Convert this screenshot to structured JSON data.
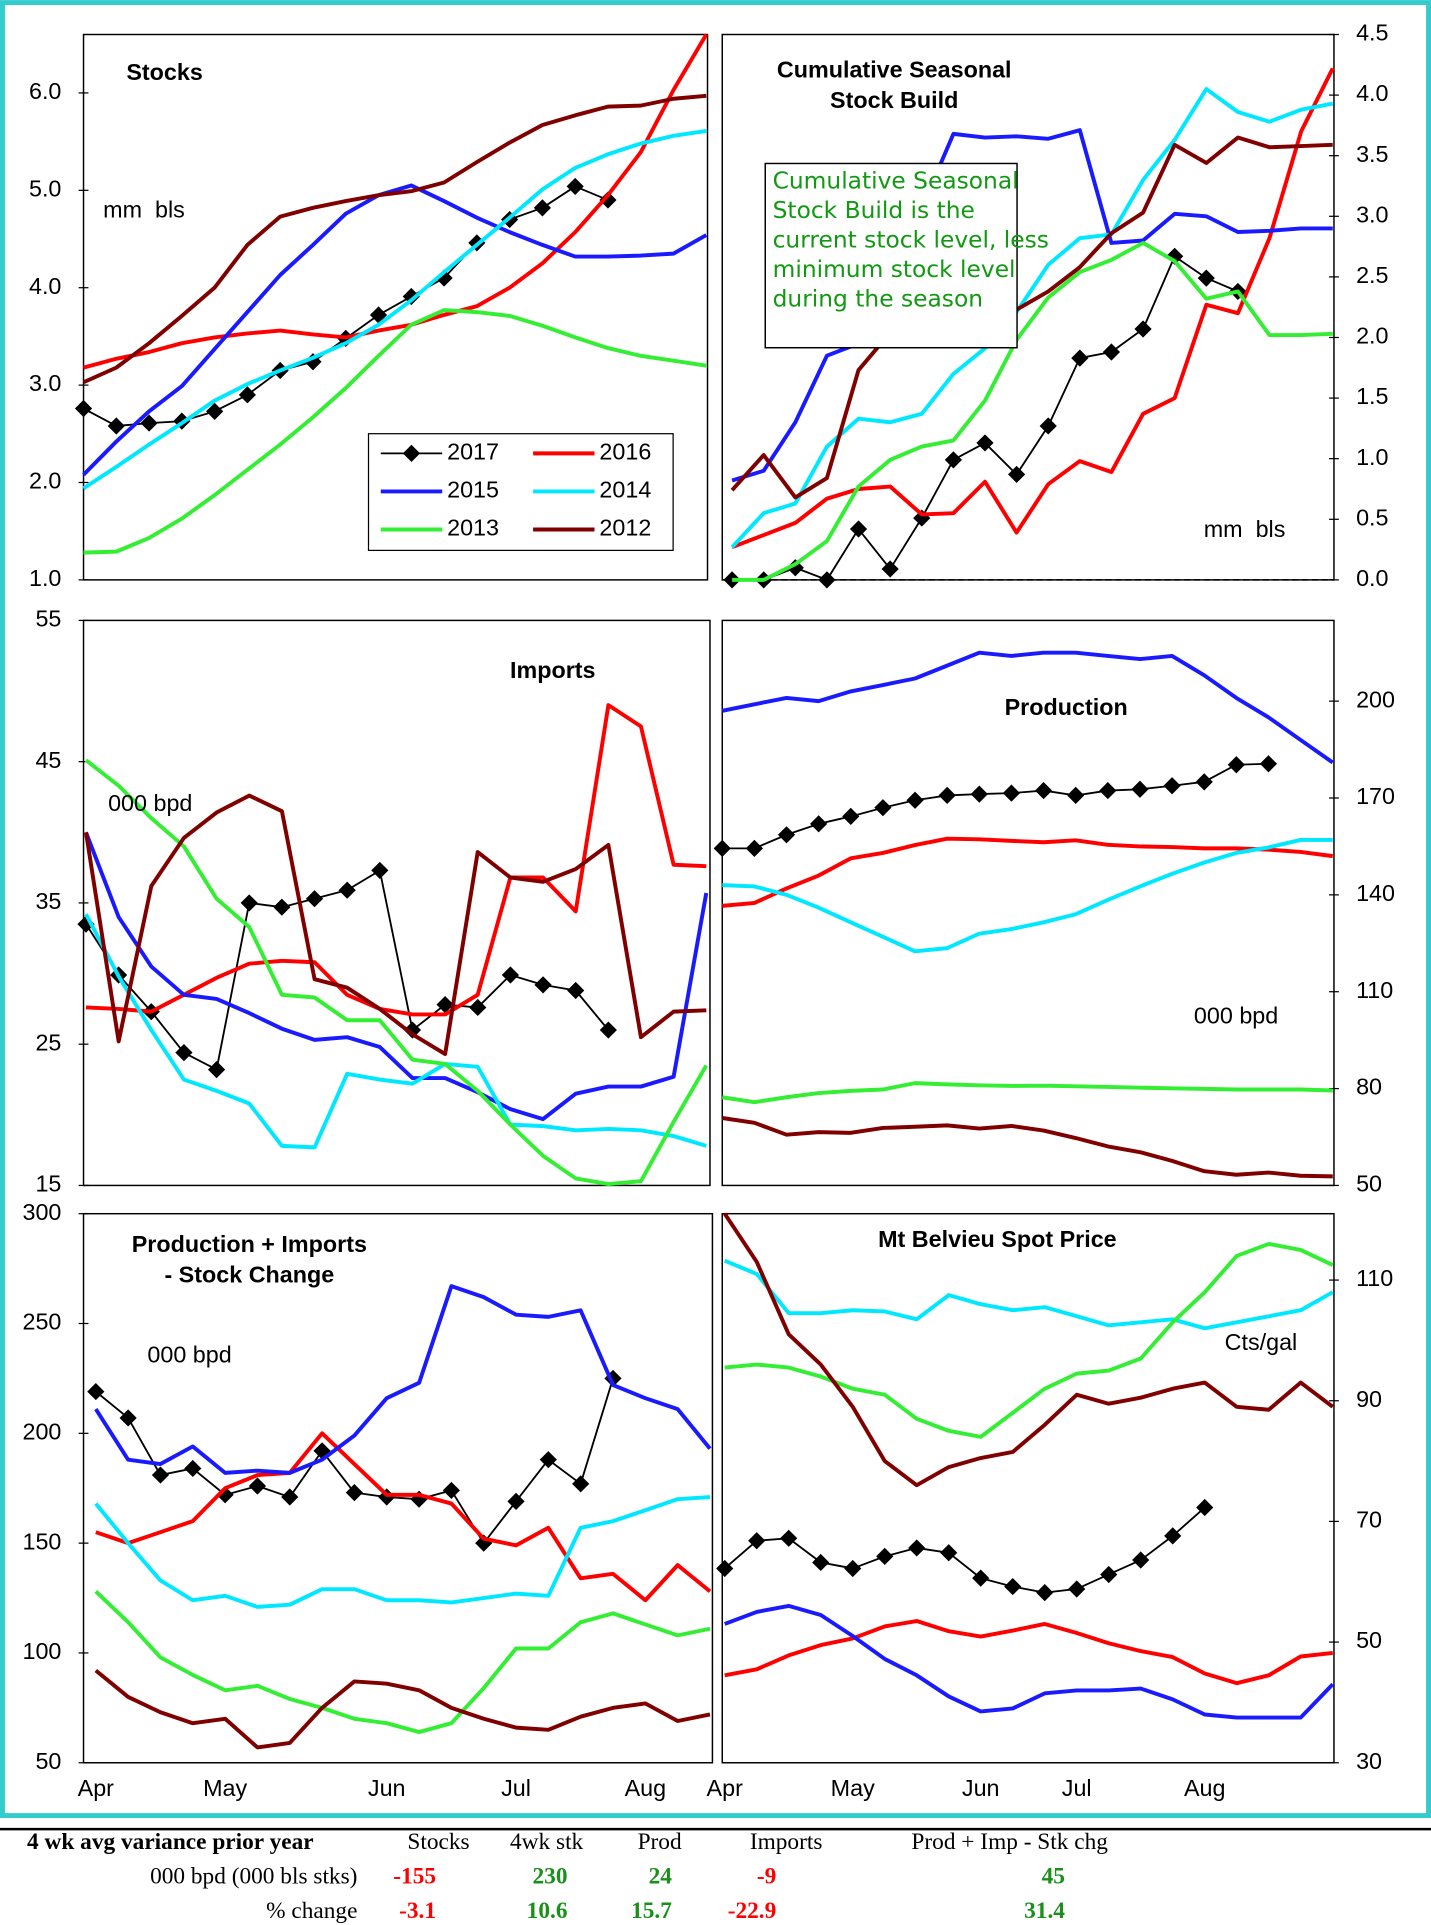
{
  "chart_data": [
    {
      "type": "line",
      "title": "Stocks",
      "annotations": [
        "mm  bls"
      ],
      "ylim": [
        1,
        6.6
      ],
      "yticks": [
        {
          "value": 1,
          "label": "1.0"
        },
        {
          "value": 2,
          "label": "2.0"
        },
        {
          "value": 3,
          "label": "3.0"
        },
        {
          "value": 4,
          "label": "4.0"
        },
        {
          "value": 5,
          "label": "5.0"
        },
        {
          "value": 6,
          "label": "6.0"
        }
      ],
      "legend": "lower right",
      "series": [
        {
          "name": "2017",
          "color": "#000000",
          "marker": "diamond",
          "values": [
            2.76,
            2.58,
            2.61,
            2.63,
            2.73,
            2.9,
            3.15,
            3.24,
            3.48,
            3.72,
            3.91,
            4.1,
            4.46,
            4.7,
            4.82,
            5.04,
            4.9,
            null,
            null,
            null
          ]
        },
        {
          "name": "2016",
          "color": "#ff0000",
          "values": [
            3.18,
            3.27,
            3.34,
            3.43,
            3.49,
            3.53,
            3.56,
            3.52,
            3.49,
            3.56,
            3.62,
            3.72,
            3.81,
            4.0,
            4.25,
            4.57,
            4.95,
            5.39,
            6.03,
            6.6
          ]
        },
        {
          "name": "2015",
          "color": "#1a1aff",
          "values": [
            2.08,
            2.42,
            2.73,
            2.99,
            3.37,
            3.75,
            4.13,
            4.44,
            4.76,
            4.95,
            5.05,
            4.89,
            4.72,
            4.57,
            4.44,
            4.32,
            4.32,
            4.33,
            4.35,
            4.54
          ]
        },
        {
          "name": "2014",
          "color": "#00e8ff",
          "values": [
            1.94,
            2.16,
            2.39,
            2.61,
            2.84,
            3.01,
            3.15,
            3.28,
            3.43,
            3.62,
            3.87,
            4.16,
            4.44,
            4.72,
            5.01,
            5.23,
            5.37,
            5.48,
            5.56,
            5.61
          ]
        },
        {
          "name": "2013",
          "color": "#33ee33",
          "values": [
            1.28,
            1.29,
            1.43,
            1.63,
            1.87,
            2.13,
            2.39,
            2.67,
            2.97,
            3.3,
            3.62,
            3.77,
            3.75,
            3.71,
            3.61,
            3.49,
            3.38,
            3.3,
            3.25,
            3.2
          ]
        },
        {
          "name": "2012",
          "color": "#800000",
          "values": [
            3.03,
            3.18,
            3.43,
            3.71,
            4.0,
            4.44,
            4.73,
            4.82,
            4.89,
            4.95,
            4.99,
            5.08,
            5.29,
            5.49,
            5.67,
            5.77,
            5.86,
            5.87,
            5.94,
            5.97
          ]
        }
      ]
    },
    {
      "type": "line",
      "title": [
        "Cumulative Seasonal",
        "Stock Build"
      ],
      "annotations": [
        "mm  bls"
      ],
      "zero_line": true,
      "textbox": [
        "Cumulative Seasonal",
        "Stock Build is the",
        "current stock level, less",
        "minimum stock level",
        "during the season"
      ],
      "ylim": [
        0,
        4.5
      ],
      "yticks": [
        {
          "value": 0,
          "label": "0.0"
        },
        0.5,
        {
          "value": 1,
          "label": "1.0"
        },
        1.5,
        {
          "value": 2,
          "label": "2.0"
        },
        2.5,
        {
          "value": 3,
          "label": "3.0"
        },
        3.5,
        {
          "value": 4,
          "label": "4.0"
        },
        4.5
      ],
      "series": [
        {
          "color": "#000000",
          "marker": "diamond",
          "values": [
            0,
            0,
            0.1,
            0,
            0.42,
            0.09,
            0.51,
            0.99,
            1.13,
            0.87,
            1.27,
            1.83,
            1.88,
            2.07,
            2.67,
            2.49,
            2.38,
            null,
            null,
            null
          ]
        },
        {
          "color": "#ff0000",
          "values": [
            0.27,
            0.37,
            0.47,
            0.67,
            0.75,
            0.77,
            0.54,
            0.55,
            0.81,
            0.39,
            0.79,
            0.98,
            0.89,
            1.37,
            1.5,
            2.27,
            2.2,
            2.82,
            3.7,
            4.22
          ]
        },
        {
          "color": "#1a1aff",
          "values": [
            0.82,
            0.9,
            1.3,
            1.85,
            1.95,
            2.5,
            3.07,
            3.68,
            3.65,
            3.66,
            3.64,
            3.71,
            2.78,
            2.8,
            3.02,
            3.0,
            2.87,
            2.88,
            2.9,
            2.9
          ]
        },
        {
          "color": "#00e8ff",
          "values": [
            0.27,
            0.55,
            0.63,
            1.1,
            1.33,
            1.3,
            1.37,
            1.7,
            1.91,
            2.21,
            2.6,
            2.82,
            2.85,
            3.3,
            3.63,
            4.05,
            3.86,
            3.78,
            3.88,
            3.93
          ]
        },
        {
          "color": "#33ee33",
          "values": [
            0,
            0,
            0.13,
            0.32,
            0.77,
            0.99,
            1.1,
            1.15,
            1.48,
            1.98,
            2.33,
            2.54,
            2.64,
            2.78,
            2.63,
            2.32,
            2.38,
            2.02,
            2.02,
            2.03
          ]
        },
        {
          "color": "#800000",
          "values": [
            0.74,
            1.03,
            0.68,
            0.84,
            1.73,
            2.04,
            2.36,
            2.25,
            2.0,
            2.23,
            2.38,
            2.58,
            2.86,
            3.03,
            3.59,
            3.44,
            3.65,
            3.57,
            3.58,
            3.59
          ]
        }
      ]
    },
    {
      "type": "line",
      "title": "Imports",
      "annotations": [
        "000 bpd"
      ],
      "ylim": [
        15,
        55
      ],
      "yticks": [
        15,
        25,
        35,
        45,
        55
      ],
      "series": [
        {
          "color": "#000000",
          "marker": "diamond",
          "values": [
            33.5,
            29.9,
            27.3,
            24.4,
            23.2,
            35,
            34.7,
            35.3,
            35.9,
            37.3,
            26,
            27.8,
            27.6,
            29.9,
            29.2,
            28.8,
            26,
            null,
            null,
            null
          ]
        },
        {
          "color": "#ff0000",
          "values": [
            27.6,
            27.5,
            27.3,
            28.5,
            29.7,
            30.7,
            30.9,
            30.8,
            28.5,
            27.5,
            27.1,
            27.1,
            28.5,
            36.8,
            36.8,
            34.4,
            49,
            47.5,
            37.7,
            37.6
          ]
        },
        {
          "color": "#1a1aff",
          "values": [
            40,
            34,
            30.5,
            28.5,
            28.2,
            27.2,
            26.1,
            25.3,
            25.5,
            24.8,
            22.6,
            22.6,
            21.6,
            20.4,
            19.7,
            21.5,
            22,
            22,
            22.7,
            35.7
          ]
        },
        {
          "color": "#00e8ff",
          "values": [
            34.2,
            29.8,
            26,
            22.5,
            21.7,
            20.8,
            17.8,
            17.7,
            22.9,
            22.5,
            22.2,
            23.6,
            23.4,
            19.3,
            19.2,
            18.9,
            19,
            18.9,
            18.5,
            17.8
          ]
        },
        {
          "color": "#33ee33",
          "values": [
            45.1,
            43.3,
            41,
            39,
            35.3,
            33.3,
            28.5,
            28.3,
            26.7,
            26.7,
            23.9,
            23.6,
            21.7,
            19.3,
            17.1,
            15.5,
            15.1,
            15.3,
            19.5,
            23.5
          ]
        },
        {
          "color": "#800000",
          "values": [
            40,
            25.2,
            36.2,
            39.6,
            41.4,
            42.6,
            41.5,
            29.6,
            29,
            27.5,
            25.7,
            24.3,
            38.6,
            36.8,
            36.5,
            37.4,
            39.1,
            25.5,
            27.3,
            27.4
          ]
        }
      ]
    },
    {
      "type": "line",
      "title": "Production",
      "annotations": [
        "000 bpd"
      ],
      "ylim": [
        50,
        225
      ],
      "yticks": [
        50,
        80,
        110,
        140,
        170,
        200
      ],
      "series": [
        {
          "color": "#000000",
          "marker": "diamond",
          "values": [
            154.4,
            154.4,
            158.6,
            162,
            164.3,
            167,
            169.3,
            170.8,
            171.2,
            171.5,
            172.3,
            170.8,
            172.3,
            172.7,
            173.8,
            175,
            180.3,
            180.6,
            null,
            null
          ]
        },
        {
          "color": "#ff0000",
          "values": [
            136.6,
            137.5,
            142,
            146,
            151.3,
            153,
            155.4,
            157.4,
            157.2,
            156.7,
            156.3,
            156.9,
            155.5,
            155,
            154.8,
            154.4,
            154.4,
            154,
            153.3,
            152
          ]
        },
        {
          "color": "#1a1aff",
          "values": [
            197,
            199,
            201,
            200,
            203,
            205,
            207,
            211,
            215,
            214,
            215,
            215,
            214,
            213,
            214,
            208,
            201,
            195,
            188,
            181
          ]
        },
        {
          "color": "#00e8ff",
          "values": [
            143,
            142.6,
            140,
            136,
            131.5,
            127,
            122.5,
            123.5,
            128,
            129.4,
            131.5,
            134,
            138.4,
            142.6,
            146.5,
            150,
            153,
            154.7,
            157,
            157
          ]
        },
        {
          "color": "#33ee33",
          "values": [
            77.3,
            75.8,
            77.3,
            78.6,
            79.3,
            79.7,
            81.7,
            81.3,
            81,
            80.8,
            80.9,
            80.7,
            80.5,
            80.3,
            80.1,
            79.9,
            79.7,
            79.7,
            79.7,
            79.4
          ]
        },
        {
          "color": "#800000",
          "values": [
            70.9,
            69.4,
            65.7,
            66.5,
            66.3,
            67.8,
            68.2,
            68.6,
            67.6,
            68.4,
            67,
            64.7,
            62.1,
            60.3,
            57.6,
            54.4,
            53.3,
            54,
            53,
            52.8
          ]
        }
      ]
    },
    {
      "type": "line",
      "title": [
        "Production + Imports",
        "- Stock Change"
      ],
      "annotations": [
        "000 bpd"
      ],
      "ylim": [
        50,
        300
      ],
      "yticks": [
        50,
        100,
        150,
        200,
        250,
        300
      ],
      "categories": [
        "Apr",
        null,
        null,
        null,
        "May",
        null,
        null,
        null,
        null,
        "Jun",
        null,
        null,
        null,
        "Jul",
        null,
        null,
        null,
        "Aug",
        null,
        null
      ],
      "series": [
        {
          "color": "#000000",
          "marker": "diamond",
          "values": [
            219,
            207,
            181,
            184,
            172,
            176,
            171,
            192,
            173,
            171,
            170,
            174,
            150,
            169,
            188,
            177,
            225,
            null,
            null,
            null
          ]
        },
        {
          "color": "#ff0000",
          "values": [
            155,
            150,
            155,
            160,
            175,
            181,
            182,
            200,
            186,
            172,
            172,
            168,
            152,
            149,
            157,
            134,
            136,
            124,
            140,
            128
          ]
        },
        {
          "color": "#1a1aff",
          "values": [
            211,
            188,
            186,
            194,
            182,
            183,
            182,
            188,
            199,
            216,
            223,
            267,
            262,
            254,
            253,
            256,
            222,
            216,
            211,
            193
          ]
        },
        {
          "color": "#00e8ff",
          "values": [
            168,
            150,
            133,
            124,
            126,
            121,
            122,
            129,
            129,
            124,
            124,
            123,
            125,
            127,
            126,
            157,
            160,
            165,
            170,
            171
          ]
        },
        {
          "color": "#33ee33",
          "values": [
            128,
            114,
            98,
            90,
            83,
            85,
            79,
            75,
            70,
            68,
            64,
            68,
            84,
            102,
            102,
            114,
            118,
            113,
            108,
            111
          ]
        },
        {
          "color": "#800000",
          "values": [
            92,
            80,
            73,
            68,
            70,
            57,
            59,
            75,
            87,
            86,
            83,
            75,
            70,
            66,
            65,
            71,
            75,
            77,
            69,
            72
          ]
        }
      ]
    },
    {
      "type": "line",
      "title": "Mt Belvieu Spot Price",
      "annotations": [
        "Cts/gal"
      ],
      "ylim": [
        30,
        121
      ],
      "yticks": [
        30,
        50,
        70,
        90,
        110
      ],
      "categories": [
        "Apr",
        null,
        null,
        null,
        "May",
        null,
        null,
        null,
        "Jun",
        null,
        null,
        "Jul",
        null,
        null,
        null,
        "Aug",
        null,
        null,
        null,
        null
      ],
      "series": [
        {
          "color": "#000000",
          "marker": "diamond",
          "values": [
            62.2,
            66.8,
            67.2,
            63.2,
            62.2,
            64.2,
            65.6,
            64.8,
            60.6,
            59.2,
            58.2,
            58.8,
            61.2,
            63.6,
            67.6,
            72.3,
            null,
            null,
            null,
            null
          ]
        },
        {
          "color": "#ff0000",
          "values": [
            44.5,
            45.5,
            47.8,
            49.5,
            50.6,
            52.6,
            53.5,
            51.8,
            50.9,
            51.9,
            53,
            51.5,
            49.8,
            48.5,
            47.5,
            44.8,
            43.2,
            44.5,
            47.6,
            48.2
          ]
        },
        {
          "color": "#1a1aff",
          "values": [
            53,
            55,
            56,
            54.5,
            51,
            47.2,
            44.5,
            41,
            38.5,
            39,
            41.5,
            42,
            42,
            42.3,
            40.5,
            38,
            37.5,
            37.5,
            37.5,
            43
          ]
        },
        {
          "color": "#00e8ff",
          "values": [
            113.2,
            111,
            104.5,
            104.5,
            105,
            104.8,
            103.5,
            107.5,
            106,
            105,
            105.5,
            104,
            102.5,
            103,
            103.5,
            102,
            103,
            104,
            105,
            108
          ]
        },
        {
          "color": "#33ee33",
          "values": [
            95.5,
            96,
            95.5,
            94,
            92,
            91,
            87,
            85,
            84,
            88,
            92,
            94.5,
            95,
            97,
            103,
            108,
            114,
            116,
            115,
            112.5
          ]
        },
        {
          "color": "#800000",
          "values": [
            121,
            113,
            101,
            96,
            89,
            80,
            76,
            79,
            80.5,
            81.5,
            86,
            91,
            89.5,
            90.5,
            92,
            93,
            89,
            88.5,
            93,
            89
          ]
        }
      ]
    }
  ],
  "table": {
    "header": [
      "4 wk avg variance prior year",
      "Stocks",
      "4wk stk",
      "Prod",
      "Imports",
      "Prod + Imp - Stk chg"
    ],
    "rows": [
      [
        "000 bpd (000 bls stks)",
        -155,
        230,
        24,
        -9,
        45
      ],
      [
        "% change",
        -3.1,
        10.6,
        15.7,
        -22.9,
        31.4
      ]
    ]
  }
}
